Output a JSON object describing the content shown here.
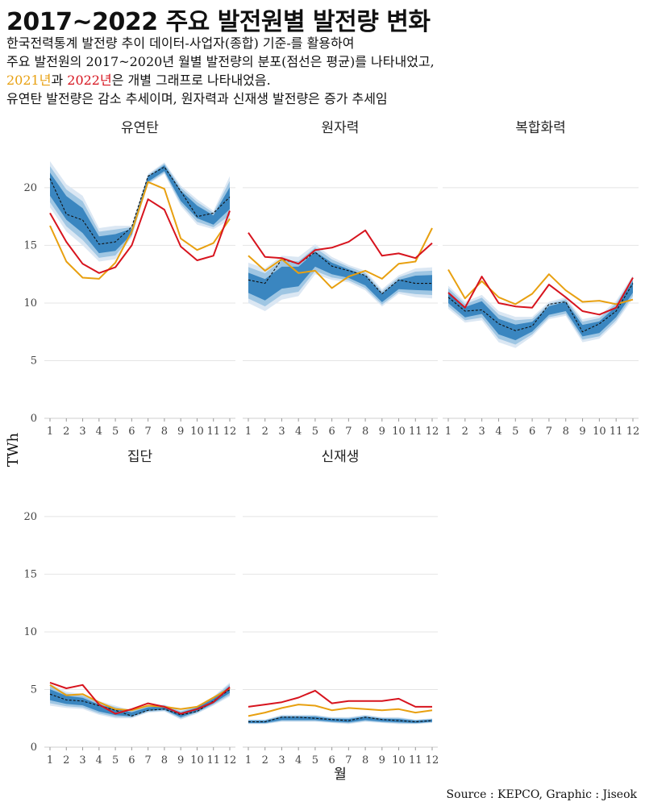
{
  "title": "2017~2022 주요 발전원별 발전량 변화",
  "subtitle": {
    "line1": "한국전력통계 발전량 추이 데이터-사업자(종합) 기준-를 활용하여",
    "line2": "주요 발전원의 2017~2020년 월별 발전량의 분포(점선은 평균)를 나타내었고,",
    "line3_y2021": "2021년",
    "line3_mid": "과  ",
    "line3_y2022": "2022년",
    "line3_end": "은 개별 그래프로 나타내었음.",
    "line4": "유연탄 발전량은 감소 추세이며, 원자력과 신재생 발전량은 증가 추세임"
  },
  "source": "Source : KEPCO, Graphic : Jiseok",
  "colors": {
    "band_outer": "#dbe7f3",
    "band_mid": "#9fc6e3",
    "band_inner": "#3a86c0",
    "mean": "#111111",
    "y2021": "#e8a010",
    "y2022": "#d7141e",
    "grid": "#e4e4e4"
  },
  "chart_data": {
    "type": "line",
    "xlabel": "월",
    "ylabel": "TWh",
    "ylim": [
      0,
      23
    ],
    "yticks": [
      0,
      5,
      10,
      15,
      20
    ],
    "x": [
      1,
      2,
      3,
      4,
      5,
      6,
      7,
      8,
      9,
      10,
      11,
      12
    ],
    "panels": [
      {
        "name": "유연탄",
        "mean": [
          20.8,
          17.7,
          17.2,
          15.1,
          15.3,
          16.6,
          21.0,
          21.8,
          19.7,
          17.5,
          17.8,
          19.2
        ],
        "min": [
          18.3,
          16.2,
          15.0,
          13.6,
          13.8,
          15.7,
          20.3,
          21.2,
          18.4,
          16.8,
          16.4,
          17.2
        ],
        "max": [
          22.3,
          20.3,
          19.3,
          16.5,
          16.7,
          16.7,
          21.2,
          22.2,
          20.2,
          19.0,
          18.0,
          21.0
        ],
        "y2021": [
          16.7,
          13.6,
          12.2,
          12.1,
          13.5,
          16.2,
          20.5,
          19.9,
          15.6,
          14.6,
          15.2,
          17.3
        ],
        "y2022": [
          17.8,
          15.3,
          13.4,
          12.6,
          13.1,
          15.0,
          19.0,
          18.1,
          14.9,
          13.7,
          14.1,
          18.0
        ]
      },
      {
        "name": "원자력",
        "mean": [
          12.0,
          11.7,
          13.8,
          13.4,
          14.4,
          13.2,
          12.8,
          12.4,
          10.8,
          12.0,
          11.7,
          11.7
        ],
        "min": [
          10.0,
          9.3,
          10.3,
          10.6,
          12.5,
          12.0,
          11.8,
          11.1,
          9.7,
          10.8,
          10.5,
          10.4
        ],
        "max": [
          13.5,
          13.0,
          14.1,
          14.0,
          15.1,
          14.0,
          13.3,
          12.8,
          11.2,
          12.4,
          13.0,
          13.1
        ],
        "y2021": [
          14.1,
          12.8,
          13.8,
          12.6,
          12.8,
          11.3,
          12.3,
          12.8,
          12.1,
          13.4,
          13.6,
          16.5
        ],
        "y2022": [
          16.1,
          14.0,
          13.9,
          13.4,
          14.6,
          14.8,
          15.3,
          16.3,
          14.1,
          14.3,
          13.9,
          15.2
        ]
      },
      {
        "name": "복합화력",
        "mean": [
          10.5,
          9.3,
          9.4,
          8.2,
          7.6,
          8.0,
          9.9,
          10.1,
          7.5,
          8.2,
          9.3,
          11.7
        ],
        "min": [
          9.5,
          8.3,
          8.5,
          6.6,
          6.1,
          7.1,
          8.6,
          8.9,
          6.6,
          6.9,
          8.3,
          10.4
        ],
        "max": [
          11.5,
          10.1,
          10.7,
          9.3,
          8.8,
          8.8,
          10.1,
          10.5,
          8.6,
          8.9,
          10.2,
          12.4
        ],
        "y2021": [
          12.9,
          10.4,
          11.9,
          10.5,
          9.9,
          10.8,
          12.5,
          11.1,
          10.1,
          10.2,
          9.9,
          10.3
        ],
        "y2022": [
          10.9,
          9.6,
          12.3,
          10.0,
          9.7,
          9.6,
          11.6,
          10.5,
          9.3,
          9.0,
          9.6,
          12.2
        ]
      },
      {
        "name": "집단",
        "mean": [
          4.6,
          4.1,
          4.0,
          3.6,
          3.2,
          2.7,
          3.2,
          3.3,
          2.8,
          3.1,
          4.0,
          5.0
        ],
        "min": [
          3.6,
          3.4,
          3.3,
          2.8,
          2.5,
          2.5,
          3.0,
          3.1,
          2.4,
          2.9,
          3.6,
          4.4
        ],
        "max": [
          5.5,
          4.8,
          4.6,
          4.0,
          3.6,
          3.2,
          3.6,
          3.7,
          3.2,
          3.6,
          4.4,
          5.6
        ],
        "y2021": [
          5.4,
          4.5,
          4.6,
          3.9,
          3.3,
          3.2,
          3.6,
          3.5,
          3.3,
          3.5,
          4.3,
          5.1
        ],
        "y2022": [
          5.6,
          5.1,
          5.4,
          3.7,
          2.9,
          3.3,
          3.8,
          3.5,
          2.9,
          3.3,
          3.9,
          5.2
        ]
      },
      {
        "name": "신재생",
        "mean": [
          2.2,
          2.2,
          2.6,
          2.6,
          2.5,
          2.4,
          2.3,
          2.6,
          2.4,
          2.3,
          2.2,
          2.3
        ],
        "min": [
          2.0,
          2.0,
          2.2,
          2.2,
          2.2,
          2.1,
          2.0,
          2.2,
          2.1,
          2.0,
          2.0,
          2.1
        ],
        "max": [
          2.4,
          2.4,
          2.8,
          2.8,
          2.8,
          2.6,
          2.6,
          2.8,
          2.6,
          2.6,
          2.4,
          2.5
        ],
        "y2021": [
          2.7,
          3.0,
          3.4,
          3.7,
          3.6,
          3.2,
          3.4,
          3.3,
          3.2,
          3.3,
          3.0,
          3.2
        ],
        "y2022": [
          3.5,
          3.7,
          3.9,
          4.3,
          4.9,
          3.8,
          4.0,
          4.0,
          4.0,
          4.2,
          3.5,
          3.5
        ]
      }
    ]
  }
}
